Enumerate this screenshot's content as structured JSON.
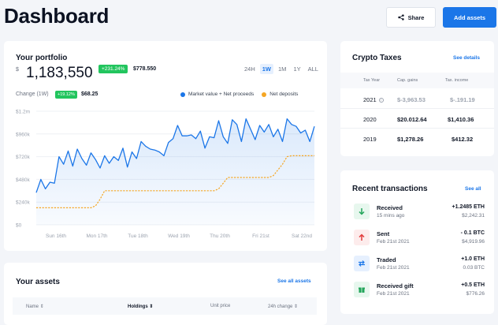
{
  "header": {
    "title": "Dashboard",
    "share_label": "Share",
    "add_assets_label": "Add assets"
  },
  "portfolio": {
    "title": "Your portfolio",
    "currency": "$",
    "value": "1,183,550",
    "change_pct": "+231.24%",
    "change_amount": "$778.550",
    "ranges": [
      "24H",
      "1W",
      "1M",
      "1Y",
      "ALL"
    ],
    "active_range": "1W",
    "period_label": "Change (1W)",
    "period_pct": "+19.12%",
    "period_amount": "$68.25",
    "legend": [
      {
        "label": "Market value + Net proceeds",
        "color": "#1b76e8"
      },
      {
        "label": "Net deposits",
        "color": "#f5a623"
      }
    ]
  },
  "chart_data": {
    "type": "line",
    "y_ticks": [
      "$1.2m",
      "$960k",
      "$720k",
      "$480k",
      "$240k",
      "$0"
    ],
    "ylim": [
      0,
      1200000
    ],
    "grid": true,
    "legend_position": "top-right",
    "x_ticks": [
      "Sun 16th",
      "Mon 17th",
      "Tue 18th",
      "Wed 19th",
      "Thu 20th",
      "Fri 21st",
      "Sat 22nd"
    ],
    "series": [
      {
        "name": "Market value + Net proceeds",
        "color": "#1b76e8",
        "area": true,
        "values": [
          340000,
          480000,
          380000,
          450000,
          440000,
          720000,
          640000,
          780000,
          620000,
          800000,
          700000,
          630000,
          760000,
          690000,
          600000,
          730000,
          650000,
          720000,
          680000,
          810000,
          610000,
          770000,
          700000,
          880000,
          830000,
          800000,
          790000,
          770000,
          730000,
          870000,
          910000,
          1050000,
          940000,
          940000,
          950000,
          910000,
          990000,
          810000,
          930000,
          920000,
          1100000,
          930000,
          860000,
          1110000,
          1060000,
          880000,
          1120000,
          1010000,
          900000,
          1050000,
          980000,
          1060000,
          930000,
          1010000,
          880000,
          1120000,
          1060000,
          1040000,
          970000,
          1000000,
          880000,
          1040000
        ]
      },
      {
        "name": "Net deposits",
        "color": "#f5a623",
        "dashed": true,
        "values": [
          180000,
          180000,
          180000,
          180000,
          180000,
          180000,
          180000,
          180000,
          180000,
          180000,
          180000,
          180000,
          180000,
          200000,
          270000,
          360000,
          360000,
          360000,
          360000,
          360000,
          360000,
          360000,
          360000,
          360000,
          360000,
          360000,
          360000,
          360000,
          360000,
          360000,
          360000,
          360000,
          360000,
          360000,
          360000,
          360000,
          360000,
          360000,
          360000,
          360000,
          380000,
          440000,
          500000,
          500000,
          500000,
          500000,
          500000,
          500000,
          500000,
          500000,
          500000,
          500000,
          520000,
          580000,
          640000,
          720000,
          730000,
          730000,
          730000,
          730000,
          730000,
          730000
        ]
      }
    ]
  },
  "assets": {
    "title": "Your assets",
    "see_all": "See all assets",
    "columns": [
      "Name",
      "Holdings",
      "Unit price",
      "24h change"
    ]
  },
  "taxes": {
    "title": "Crypto Taxes",
    "see_details": "See details",
    "headers": [
      "Tax Year",
      "Cap. gains",
      "Tax. income"
    ],
    "rows": [
      {
        "year": "2021",
        "gains": "$-3,963.53",
        "income": "$-.191.19",
        "muted": true
      },
      {
        "year": "2020",
        "gains": "$20.012.64",
        "income": "$1,410.36",
        "muted": false
      },
      {
        "year": "2019",
        "gains": "$1,278.26",
        "income": "$412.32",
        "muted": false
      }
    ]
  },
  "transactions": {
    "title": "Recent transactions",
    "see_all": "See all",
    "items": [
      {
        "type": "Received",
        "date": "15 mins ago",
        "amount": "+1.2485 ETH",
        "fiat": "$2,242.31",
        "icon": "arrow-down-icon",
        "color": "#22a55a",
        "bg": "#e7f7ee"
      },
      {
        "type": "Sent",
        "date": "Feb 21st 2021",
        "amount": "- 0.1 BTC",
        "fiat": "$4,919.96",
        "icon": "arrow-up-icon",
        "color": "#e23c3c",
        "bg": "#fdecec"
      },
      {
        "type": "Traded",
        "date": "Feb 21st 2021",
        "amount": "+1.0 ETH",
        "fiat": "0.03 BTC",
        "icon": "swap-icon",
        "color": "#1b76e8",
        "bg": "#e6f0fe"
      },
      {
        "type": "Received gift",
        "date": "Feb 21st 2021",
        "amount": "+0.5 ETH",
        "fiat": "$776.26",
        "icon": "gift-icon",
        "color": "#22a55a",
        "bg": "#e7f7ee"
      }
    ]
  }
}
